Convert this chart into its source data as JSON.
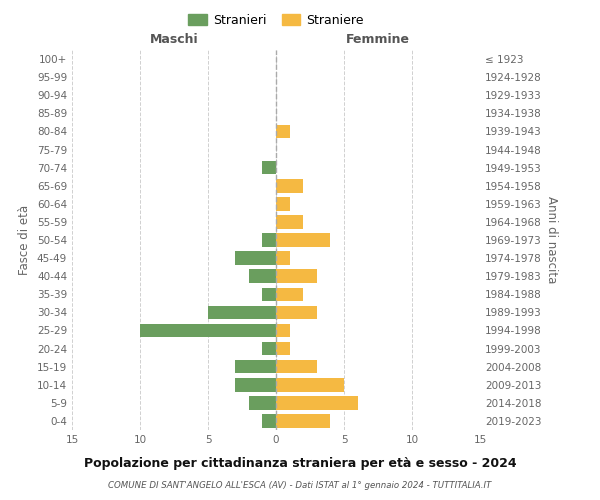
{
  "age_groups": [
    "0-4",
    "5-9",
    "10-14",
    "15-19",
    "20-24",
    "25-29",
    "30-34",
    "35-39",
    "40-44",
    "45-49",
    "50-54",
    "55-59",
    "60-64",
    "65-69",
    "70-74",
    "75-79",
    "80-84",
    "85-89",
    "90-94",
    "95-99",
    "100+"
  ],
  "birth_years": [
    "2019-2023",
    "2014-2018",
    "2009-2013",
    "2004-2008",
    "1999-2003",
    "1994-1998",
    "1989-1993",
    "1984-1988",
    "1979-1983",
    "1974-1978",
    "1969-1973",
    "1964-1968",
    "1959-1963",
    "1954-1958",
    "1949-1953",
    "1944-1948",
    "1939-1943",
    "1934-1938",
    "1929-1933",
    "1924-1928",
    "≤ 1923"
  ],
  "maschi": [
    1,
    2,
    3,
    3,
    1,
    10,
    5,
    1,
    2,
    3,
    1,
    0,
    0,
    0,
    1,
    0,
    0,
    0,
    0,
    0,
    0
  ],
  "femmine": [
    4,
    6,
    5,
    3,
    1,
    1,
    3,
    2,
    3,
    1,
    4,
    2,
    1,
    2,
    0,
    0,
    1,
    0,
    0,
    0,
    0
  ],
  "color_maschi": "#6a9e5e",
  "color_femmine": "#f5b942",
  "title": "Popolazione per cittadinanza straniera per età e sesso - 2024",
  "subtitle": "COMUNE DI SANT'ANGELO ALL'ESCA (AV) - Dati ISTAT al 1° gennaio 2024 - TUTTITALIA.IT",
  "legend_maschi": "Stranieri",
  "legend_femmine": "Straniere",
  "header_left": "Maschi",
  "header_right": "Femmine",
  "ylabel_left": "Fasce di età",
  "ylabel_right": "Anni di nascita",
  "xlim": 15,
  "background_color": "#ffffff",
  "grid_color": "#d0d0d0"
}
